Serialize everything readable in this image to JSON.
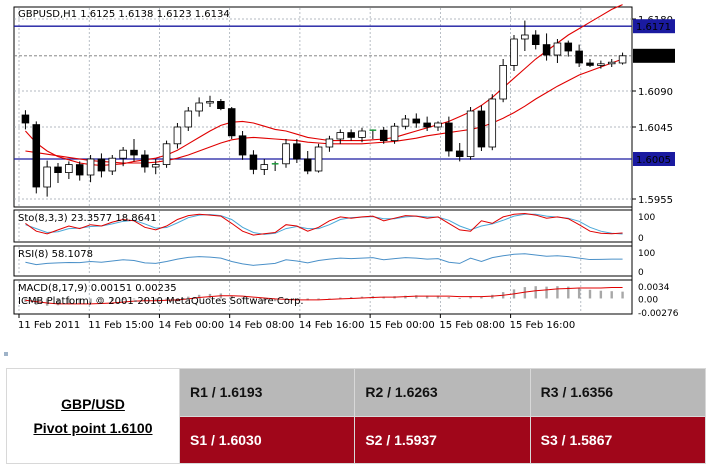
{
  "chart_data": {
    "type": "candlestick",
    "symbol_header": "GBPUSD,H1  1.6125 1.6138 1.6123 1.6134",
    "x_tick_labels": [
      "11 Feb 2011",
      "11 Feb 15:00",
      "14 Feb 00:00",
      "14 Feb 08:00",
      "14 Feb 16:00",
      "15 Feb 00:00",
      "15 Feb 08:00",
      "15 Feb 16:00"
    ],
    "price_axis": {
      "ticks": [
        "1.6180",
        "1.6090",
        "1.6045",
        "1.5955"
      ],
      "ylim": [
        1.5945,
        1.6195
      ],
      "current_price": "1.6134",
      "hlines": [
        {
          "label": "1.6171",
          "value": 1.6171
        },
        {
          "label": "1.6005",
          "value": 1.6005
        }
      ],
      "current_level": 1.6134
    },
    "ohlc": [
      [
        1.606,
        1.6066,
        1.6042,
        1.605
      ],
      [
        1.6048,
        1.6052,
        1.5962,
        1.597
      ],
      [
        1.597,
        1.6003,
        1.5958,
        1.5995
      ],
      [
        1.5995,
        1.6,
        1.5975,
        1.5988
      ],
      [
        1.5988,
        1.6002,
        1.598,
        1.5998
      ],
      [
        1.5998,
        1.6002,
        1.5978,
        1.5985
      ],
      [
        1.5985,
        1.601,
        1.5976,
        1.6005
      ],
      [
        1.6005,
        1.6012,
        1.5982,
        1.599
      ],
      [
        1.599,
        1.601,
        1.5985,
        1.6006
      ],
      [
        1.6006,
        1.602,
        1.5996,
        1.6016
      ],
      [
        1.6016,
        1.603,
        1.6002,
        1.601
      ],
      [
        1.601,
        1.6016,
        1.5988,
        1.5995
      ],
      [
        1.5995,
        1.6005,
        1.5986,
        1.5998
      ],
      [
        1.5998,
        1.6028,
        1.5994,
        1.6024
      ],
      [
        1.6024,
        1.605,
        1.6018,
        1.6045
      ],
      [
        1.6045,
        1.607,
        1.604,
        1.6065
      ],
      [
        1.6065,
        1.6082,
        1.6058,
        1.6075
      ],
      [
        1.6075,
        1.6084,
        1.607,
        1.6077
      ],
      [
        1.6077,
        1.608,
        1.6066,
        1.6068
      ],
      [
        1.6068,
        1.607,
        1.603,
        1.6034
      ],
      [
        1.6034,
        1.604,
        1.6004,
        1.601
      ],
      [
        1.601,
        1.6016,
        1.5986,
        1.5992
      ],
      [
        1.5992,
        1.6005,
        1.5985,
        1.5998
      ],
      [
        1.5998,
        1.6002,
        1.599,
        1.5999
      ],
      [
        1.5999,
        1.603,
        1.5994,
        1.6024
      ],
      [
        1.6024,
        1.603,
        1.6,
        1.6005
      ],
      [
        1.6005,
        1.6015,
        1.5986,
        1.599
      ],
      [
        1.599,
        1.6024,
        1.5988,
        1.602
      ],
      [
        1.602,
        1.6034,
        1.6014,
        1.603
      ],
      [
        1.603,
        1.6042,
        1.6024,
        1.6038
      ],
      [
        1.6038,
        1.6042,
        1.6028,
        1.6032
      ],
      [
        1.6032,
        1.6044,
        1.6026,
        1.604
      ],
      [
        1.604,
        1.6042,
        1.603,
        1.6041
      ],
      [
        1.6041,
        1.6045,
        1.6024,
        1.6028
      ],
      [
        1.6028,
        1.605,
        1.6024,
        1.6046
      ],
      [
        1.6046,
        1.606,
        1.6042,
        1.6055
      ],
      [
        1.6055,
        1.6062,
        1.6044,
        1.605
      ],
      [
        1.605,
        1.6058,
        1.604,
        1.6045
      ],
      [
        1.6045,
        1.6052,
        1.604,
        1.605
      ],
      [
        1.605,
        1.6058,
        1.6008,
        1.6015
      ],
      [
        1.6015,
        1.6025,
        1.6002,
        1.6008
      ],
      [
        1.6008,
        1.607,
        1.6004,
        1.6065
      ],
      [
        1.6065,
        1.6072,
        1.6015,
        1.602
      ],
      [
        1.602,
        1.6086,
        1.6016,
        1.608
      ],
      [
        1.608,
        1.613,
        1.6076,
        1.6122
      ],
      [
        1.6122,
        1.616,
        1.6115,
        1.6155
      ],
      [
        1.6155,
        1.6178,
        1.614,
        1.616
      ],
      [
        1.616,
        1.6166,
        1.6142,
        1.6148
      ],
      [
        1.6148,
        1.6162,
        1.6128,
        1.6135
      ],
      [
        1.6135,
        1.6155,
        1.6125,
        1.615
      ],
      [
        1.615,
        1.6153,
        1.6133,
        1.614
      ],
      [
        1.614,
        1.6148,
        1.612,
        1.6125
      ],
      [
        1.6125,
        1.613,
        1.612,
        1.6122
      ],
      [
        1.6122,
        1.6128,
        1.6118,
        1.6124
      ],
      [
        1.6124,
        1.613,
        1.612,
        1.6126
      ],
      [
        1.6125,
        1.6138,
        1.6123,
        1.6134
      ]
    ],
    "ma_fast": [
      1.604,
      1.6025,
      1.6015,
      1.6008,
      1.6004,
      1.6,
      1.5998,
      1.5997,
      1.5998,
      1.5999,
      1.6002,
      1.6004,
      1.6006,
      1.601,
      1.6016,
      1.6024,
      1.6032,
      1.604,
      1.6047,
      1.6051,
      1.6052,
      1.605,
      1.6046,
      1.6042,
      1.604,
      1.6036,
      1.6032,
      1.603,
      1.6028,
      1.6028,
      1.6028,
      1.6028,
      1.6029,
      1.603,
      1.6032,
      1.6036,
      1.604,
      1.6044,
      1.6048,
      1.6052,
      1.6058,
      1.6064,
      1.6072,
      1.6082,
      1.6094,
      1.6106,
      1.6118,
      1.613,
      1.614,
      1.615,
      1.616,
      1.6168,
      1.6176,
      1.6184,
      1.6192,
      1.6198
    ],
    "ma_slow": [
      1.6015,
      1.6013,
      1.6011,
      1.6009,
      1.6007,
      1.6005,
      1.6003,
      1.6002,
      1.6001,
      1.6,
      1.6,
      1.6,
      1.6001,
      1.6003,
      1.6006,
      1.601,
      1.6015,
      1.602,
      1.6025,
      1.6029,
      1.6031,
      1.6032,
      1.6031,
      1.603,
      1.6029,
      1.6028,
      1.6026,
      1.6025,
      1.6024,
      1.6024,
      1.6024,
      1.6024,
      1.6025,
      1.6026,
      1.6027,
      1.6029,
      1.6031,
      1.6034,
      1.6036,
      1.6038,
      1.604,
      1.6042,
      1.6045,
      1.605,
      1.6056,
      1.6063,
      1.6071,
      1.608,
      1.6088,
      1.6096,
      1.6103,
      1.611,
      1.6115,
      1.612,
      1.6125,
      1.613
    ],
    "stochastic": {
      "label": "Sto(8,3,3) 23.3577 18.8641",
      "ticks": [
        "100",
        "0"
      ],
      "main": [
        60,
        30,
        20,
        35,
        50,
        40,
        55,
        50,
        65,
        75,
        70,
        45,
        35,
        50,
        75,
        90,
        95,
        92,
        88,
        60,
        30,
        15,
        20,
        25,
        55,
        50,
        30,
        45,
        70,
        85,
        80,
        85,
        88,
        70,
        80,
        90,
        88,
        80,
        85,
        60,
        35,
        30,
        70,
        60,
        85,
        95,
        98,
        92,
        80,
        85,
        78,
        55,
        30,
        22,
        20,
        23
      ],
      "signal": [
        55,
        40,
        25,
        28,
        40,
        42,
        48,
        50,
        58,
        68,
        72,
        58,
        42,
        44,
        62,
        82,
        92,
        94,
        90,
        75,
        45,
        25,
        18,
        22,
        40,
        48,
        40,
        40,
        55,
        75,
        82,
        84,
        86,
        78,
        78,
        85,
        88,
        85,
        84,
        72,
        50,
        35,
        50,
        58,
        72,
        88,
        95,
        95,
        88,
        84,
        80,
        68,
        45,
        30,
        22,
        19
      ]
    },
    "rsi": {
      "label": "RSI(8) 58.1078",
      "ticks": [
        "100",
        "0"
      ],
      "values": [
        45,
        35,
        40,
        42,
        44,
        43,
        48,
        45,
        50,
        55,
        52,
        42,
        40,
        48,
        58,
        65,
        68,
        66,
        62,
        48,
        38,
        32,
        36,
        40,
        55,
        50,
        42,
        52,
        58,
        62,
        60,
        62,
        64,
        55,
        60,
        64,
        62,
        58,
        60,
        45,
        40,
        62,
        48,
        64,
        72,
        78,
        80,
        75,
        70,
        72,
        68,
        62,
        56,
        57,
        58,
        58
      ]
    },
    "macd": {
      "label": "MACD(8,17,9) 0.00151 0.00235",
      "watermark": "ICMB Platform, © 2001-2010 MetaQuotes Software Corp.",
      "ticks": [
        "0.0034",
        "0.00",
        "-0.00276"
      ],
      "hist": [
        -0.0008,
        -0.0014,
        -0.0016,
        -0.0015,
        -0.0013,
        -0.0012,
        -0.001,
        -0.0009,
        -0.0006,
        -0.0003,
        -0.0002,
        -0.0004,
        -0.0005,
        -0.0003,
        0.0,
        0.0004,
        0.0008,
        0.001,
        0.0011,
        0.0006,
        0.0002,
        -0.0003,
        -0.0006,
        -0.0006,
        -0.0003,
        -0.0003,
        -0.0004,
        -0.0002,
        0.0,
        0.0002,
        0.0003,
        0.0004,
        0.0005,
        0.0004,
        0.0005,
        0.0006,
        0.0007,
        0.0006,
        0.0006,
        0.0003,
        0.0001,
        0.0005,
        0.0003,
        0.0008,
        0.0014,
        0.002,
        0.0025,
        0.0027,
        0.0026,
        0.0027,
        0.0026,
        0.0023,
        0.0019,
        0.0017,
        0.0016,
        0.0015
      ],
      "signal": [
        -0.0004,
        -0.0007,
        -0.001,
        -0.0012,
        -0.0012,
        -0.0012,
        -0.0012,
        -0.0011,
        -0.001,
        -0.0008,
        -0.0006,
        -0.0005,
        -0.0005,
        -0.0004,
        -0.0003,
        -0.0001,
        0.0002,
        0.0004,
        0.0006,
        0.0006,
        0.0005,
        0.0003,
        0.0001,
        -0.0001,
        -0.0002,
        -0.0003,
        -0.0003,
        -0.0003,
        -0.0002,
        -0.0001,
        0.0,
        0.0001,
        0.0002,
        0.0003,
        0.0003,
        0.0004,
        0.0005,
        0.0005,
        0.0005,
        0.0005,
        0.0004,
        0.0004,
        0.0004,
        0.0005,
        0.0007,
        0.001,
        0.0014,
        0.0017,
        0.0019,
        0.0021,
        0.0022,
        0.0023,
        0.0023,
        0.0023,
        0.0024,
        0.0024
      ]
    }
  },
  "pivot": {
    "pair": "GBP/USD",
    "pivot_label": "Pivot point 1.6100",
    "resistances": [
      "R1 / 1.6193",
      "R2 / 1.6263",
      "R3 / 1.6356"
    ],
    "supports": [
      "S1 / 1.6030",
      "S2 / 1.5937",
      "S3 / 1.5867"
    ]
  },
  "colors": {
    "bull": "#ffffff",
    "bear": "#000000",
    "ma": "#e00000",
    "ma_slow": "#e00000",
    "hline": "#1a1aa0",
    "grid": "#9aa3ad",
    "stoch_main": "#e00000",
    "stoch_signal": "#4aa8d8",
    "rsi": "#4a90c8",
    "macd_hist": "#a8a8a8",
    "macd_signal": "#e00000",
    "resistance_bg": "#b8b8b8",
    "support_bg": "#a0061a"
  }
}
